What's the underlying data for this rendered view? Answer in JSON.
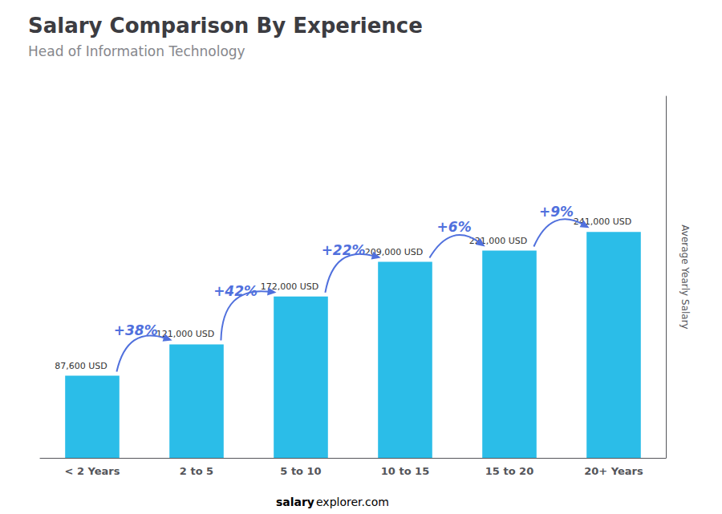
{
  "chart_data": {
    "type": "bar",
    "title": "Salary Comparison By Experience",
    "subtitle": "Head of Information Technology",
    "ylabel": "Average Yearly Salary",
    "categories": [
      "< 2 Years",
      "2 to 5",
      "5 to 10",
      "10 to 15",
      "15 to 20",
      "20+ Years"
    ],
    "values": [
      87600,
      121000,
      172000,
      209000,
      221000,
      241000
    ],
    "value_labels": [
      "87,600 USD",
      "121,000 USD",
      "172,000 USD",
      "209,000 USD",
      "221,000 USD",
      "241,000 USD"
    ],
    "data_labels": true,
    "color": "#2bbde8",
    "annotations": [
      "+38%",
      "+42%",
      "+22%",
      "+6%",
      "+9%"
    ],
    "watermark": [
      "salary",
      "explorer.com"
    ],
    "ylim": [
      0,
      385600
    ],
    "grid": false,
    "tick_labels": "x"
  }
}
